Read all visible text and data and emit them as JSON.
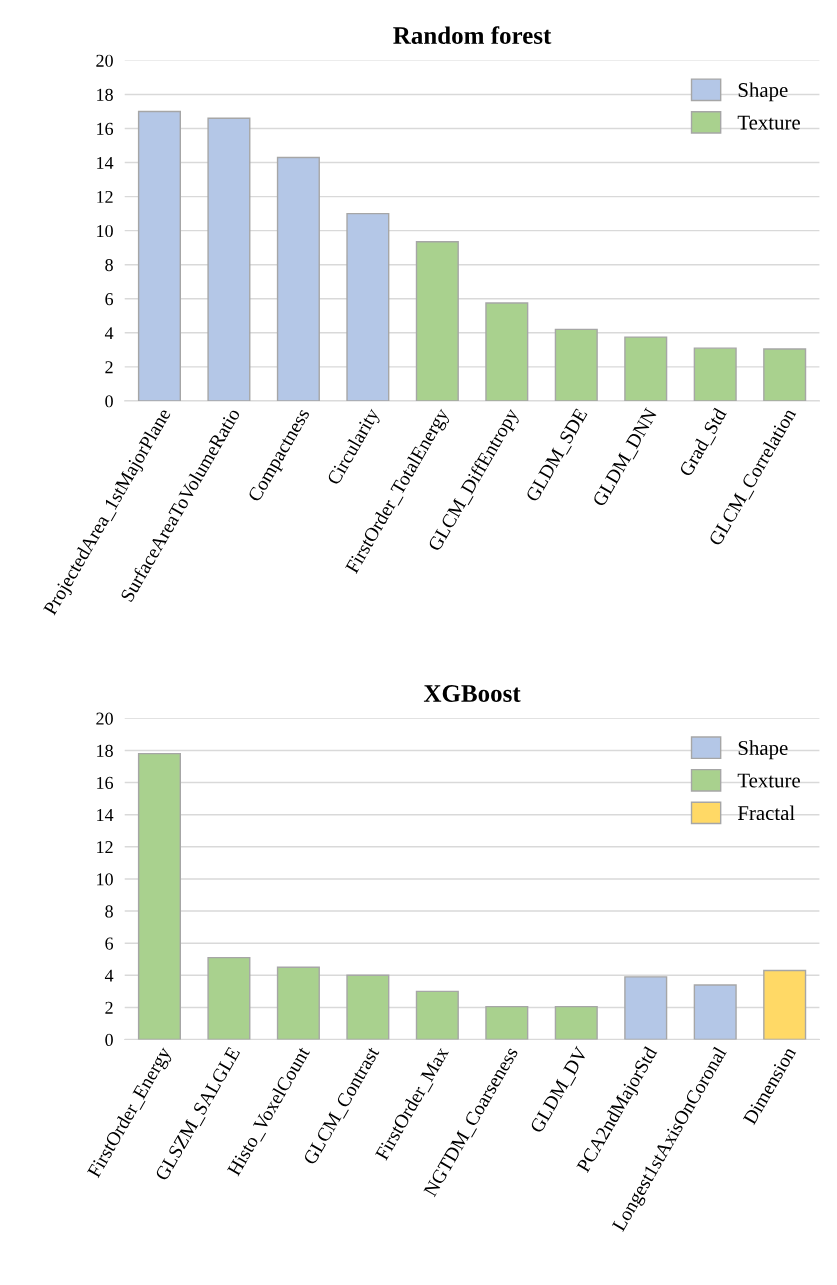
{
  "chart_data": [
    {
      "type": "bar",
      "title": "Random forest",
      "stacked": true,
      "categories": [
        "ProjectedArea_1stMajorPlane",
        "SurfaceAreaToVolumeRatio",
        "Compactness",
        "Circularity",
        "FirstOrder_TotalEnergy",
        "GLCM_DiffEntropy",
        "GLDM_SDE",
        "GLDM_DNN",
        "Grad_Std",
        "GLCM_Correlation"
      ],
      "series": [
        {
          "name": "Shape",
          "color": "#b4c7e7",
          "values": [
            17.0,
            16.6,
            14.3,
            11.0,
            null,
            null,
            null,
            null,
            null,
            null
          ]
        },
        {
          "name": "Texture",
          "color": "#a9d18e",
          "values": [
            null,
            null,
            null,
            null,
            9.35,
            5.75,
            4.2,
            3.75,
            3.1,
            3.05
          ]
        }
      ],
      "ylim": [
        0,
        20
      ],
      "yticks": [
        0,
        2,
        4,
        6,
        8,
        10,
        12,
        14,
        16,
        18,
        20
      ],
      "grid": "y",
      "legend": "top right"
    },
    {
      "type": "bar",
      "title": "XGBoost",
      "stacked": true,
      "categories": [
        "FirstOrder_Energy",
        "GLSZM_SALGLE",
        "Histo_VoxelCount",
        "GLCM_Contrast",
        "FirstOrder_Max",
        "NGTDM_Coarseness",
        "GLDM_DV",
        "PCA2ndMajorStd",
        "Longest1stAxisOnCoronal",
        "Dimension"
      ],
      "series": [
        {
          "name": "Shape",
          "color": "#b4c7e7",
          "values": [
            null,
            null,
            null,
            null,
            null,
            null,
            null,
            3.9,
            3.4,
            null
          ]
        },
        {
          "name": "Texture",
          "color": "#a9d18e",
          "values": [
            17.8,
            5.1,
            4.5,
            4.0,
            3.0,
            2.05,
            2.05,
            null,
            null,
            null
          ]
        },
        {
          "name": "Fractal",
          "color": "#ffd966",
          "values": [
            null,
            null,
            null,
            null,
            null,
            null,
            null,
            null,
            null,
            4.3
          ]
        }
      ],
      "ylim": [
        0,
        20
      ],
      "yticks": [
        0,
        2,
        4,
        6,
        8,
        10,
        12,
        14,
        16,
        18,
        20
      ],
      "grid": "y",
      "legend": "top right"
    }
  ]
}
